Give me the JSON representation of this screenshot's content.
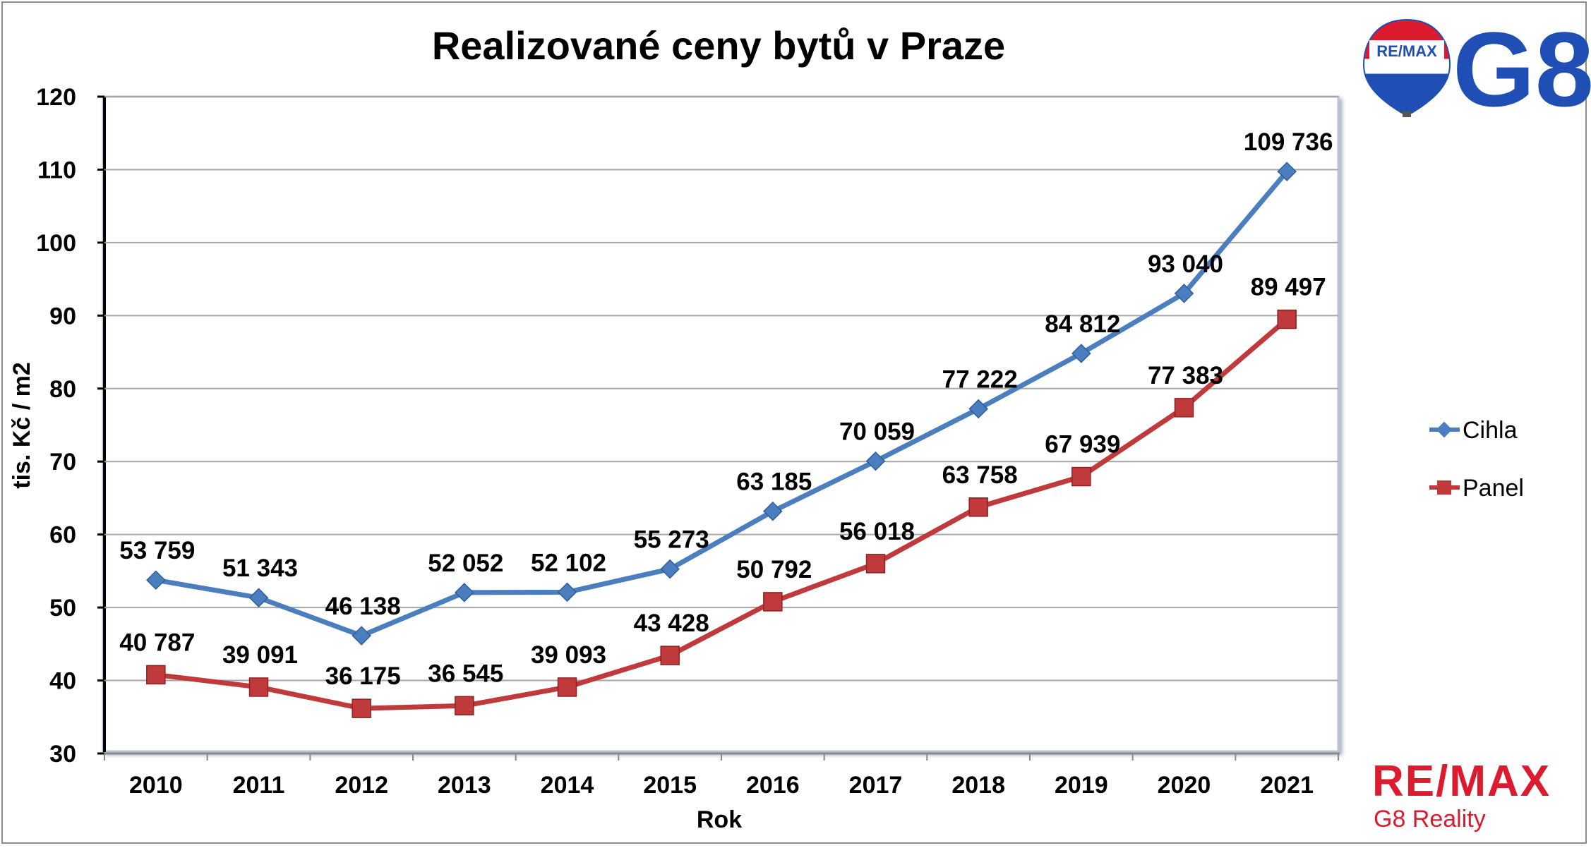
{
  "chart_data": {
    "type": "line",
    "title": "Realizované ceny bytů v Praze",
    "xlabel": "Rok",
    "ylabel": "tis. Kč / m2",
    "categories": [
      "2010",
      "2011",
      "2012",
      "2013",
      "2014",
      "2015",
      "2016",
      "2017",
      "2018",
      "2019",
      "2020",
      "2021"
    ],
    "yticks": [
      "30",
      "40",
      "50",
      "60",
      "70",
      "80",
      "90",
      "100",
      "110",
      "120"
    ],
    "ylim": [
      30,
      120
    ],
    "grid": true,
    "legend_position": "right",
    "series": [
      {
        "name": "Cihla",
        "color": "#4a7ebf",
        "marker": "diamond",
        "values": [
          53.759,
          51.343,
          46.138,
          52.052,
          52.102,
          55.273,
          63.185,
          70.059,
          77.222,
          84.812,
          93.04,
          109.736
        ],
        "labels": [
          "53 759",
          "51 343",
          "46 138",
          "52 052",
          "52 102",
          "55 273",
          "63 185",
          "70 059",
          "77 222",
          "84 812",
          "93 040",
          "109 736"
        ]
      },
      {
        "name": "Panel",
        "color": "#c0393b",
        "marker": "square",
        "values": [
          40.787,
          39.091,
          36.175,
          36.545,
          39.093,
          43.428,
          50.792,
          56.018,
          63.758,
          67.939,
          77.383,
          89.497
        ],
        "labels": [
          "40 787",
          "39 091",
          "36 175",
          "36 545",
          "39 093",
          "43 428",
          "50 792",
          "56 018",
          "63 758",
          "67 939",
          "77 383",
          "89 497"
        ]
      }
    ]
  },
  "logos": {
    "balloon_text": "RE/MAX",
    "g8_text": "G8",
    "remax_text": "RE/MAX",
    "remax_sub": "G8 Reality",
    "brand_red": "#dc1c2e",
    "brand_blue": "#1f4fb5"
  }
}
